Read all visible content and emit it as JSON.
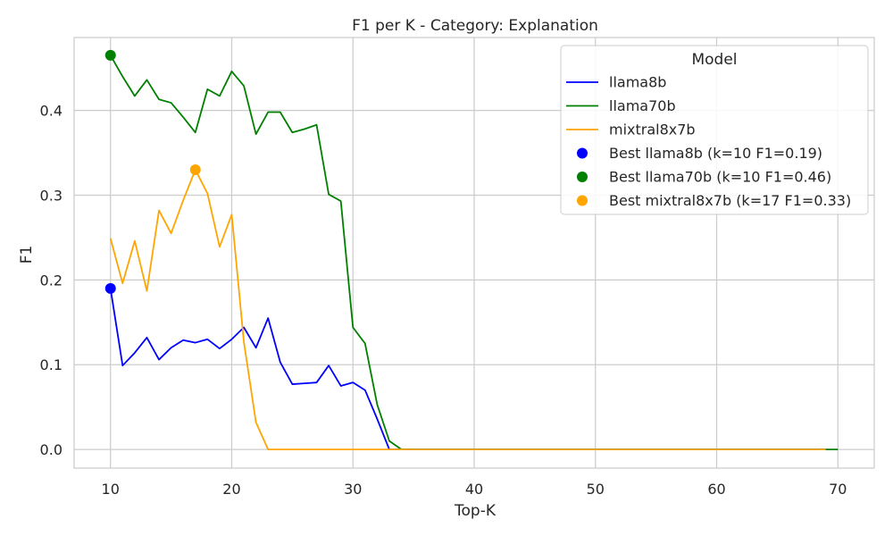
{
  "chart_data": {
    "type": "line",
    "title": "F1 per K - Category: Explanation",
    "xlabel": "Top-K",
    "ylabel": "F1",
    "xlim": [
      7,
      73
    ],
    "ylim": [
      -0.022,
      0.486
    ],
    "xticks": [
      10,
      20,
      30,
      40,
      50,
      60,
      70
    ],
    "xtick_labels": [
      "10",
      "20",
      "30",
      "40",
      "50",
      "60",
      "70"
    ],
    "yticks": [
      0.0,
      0.1,
      0.2,
      0.3,
      0.4
    ],
    "ytick_labels": [
      "0.0",
      "0.1",
      "0.2",
      "0.3",
      "0.4"
    ],
    "grid": true,
    "legend": {
      "title": "Model",
      "placement": "top-right"
    },
    "series": [
      {
        "name": "llama8b",
        "color": "#0000ff",
        "x": [
          10,
          11,
          12,
          13,
          14,
          15,
          16,
          17,
          18,
          19,
          20,
          21,
          22,
          23,
          24,
          25,
          26,
          27,
          28,
          29,
          30,
          31,
          32,
          33,
          34,
          35,
          36,
          37,
          38,
          39,
          40,
          41,
          42,
          43,
          44,
          45,
          46,
          47,
          48,
          49,
          50,
          51,
          52,
          53,
          54,
          55,
          56,
          57,
          58,
          59,
          60,
          61,
          62,
          63,
          64,
          65,
          66,
          67,
          68,
          69
        ],
        "y": [
          0.19,
          0.099,
          0.114,
          0.132,
          0.106,
          0.12,
          0.129,
          0.126,
          0.13,
          0.119,
          0.13,
          0.144,
          0.12,
          0.155,
          0.103,
          0.077,
          0.078,
          0.079,
          0.099,
          0.075,
          0.079,
          0.07,
          0.036,
          0.0,
          0,
          0,
          0,
          0,
          0,
          0,
          0,
          0,
          0,
          0,
          0,
          0,
          0,
          0,
          0,
          0,
          0,
          0,
          0,
          0,
          0,
          0,
          0,
          0,
          0,
          0,
          0,
          0,
          0,
          0,
          0,
          0,
          0,
          0,
          0,
          0
        ]
      },
      {
        "name": "llama70b",
        "color": "#008000",
        "x": [
          10,
          11,
          12,
          13,
          14,
          15,
          16,
          17,
          18,
          19,
          20,
          21,
          22,
          23,
          24,
          25,
          26,
          27,
          28,
          29,
          30,
          31,
          32,
          33,
          34,
          35,
          36,
          37,
          38,
          39,
          40,
          41,
          42,
          43,
          44,
          45,
          46,
          47,
          48,
          49,
          50,
          51,
          52,
          53,
          54,
          55,
          56,
          57,
          58,
          59,
          60,
          61,
          62,
          63,
          64,
          65,
          66,
          67,
          68,
          69,
          70
        ],
        "y": [
          0.465,
          0.44,
          0.417,
          0.436,
          0.413,
          0.409,
          0.392,
          0.374,
          0.425,
          0.417,
          0.446,
          0.429,
          0.372,
          0.398,
          0.398,
          0.374,
          0.378,
          0.383,
          0.301,
          0.293,
          0.144,
          0.125,
          0.053,
          0.01,
          0.0,
          0,
          0,
          0,
          0,
          0,
          0,
          0,
          0,
          0,
          0,
          0,
          0,
          0,
          0,
          0,
          0,
          0,
          0,
          0,
          0,
          0,
          0,
          0,
          0,
          0,
          0,
          0,
          0,
          0,
          0,
          0,
          0,
          0,
          0,
          0,
          0
        ]
      },
      {
        "name": "mixtral8x7b",
        "color": "#ffa500",
        "x": [
          10,
          11,
          12,
          13,
          14,
          15,
          16,
          17,
          18,
          19,
          20,
          21,
          22,
          23,
          24,
          25,
          26,
          27,
          28,
          29,
          30,
          31,
          32,
          33,
          34,
          35,
          36,
          37,
          38,
          39,
          40,
          41,
          42,
          43,
          44,
          45,
          46,
          47,
          48,
          49,
          50,
          51,
          52,
          53,
          54,
          55,
          56,
          57,
          58,
          59,
          60,
          61,
          62,
          63,
          64,
          65,
          66,
          67,
          68,
          69
        ],
        "y": [
          0.249,
          0.196,
          0.246,
          0.187,
          0.282,
          0.255,
          0.294,
          0.33,
          0.302,
          0.239,
          0.277,
          0.127,
          0.032,
          0.0,
          0,
          0,
          0,
          0,
          0,
          0,
          0,
          0,
          0,
          0,
          0,
          0,
          0,
          0,
          0,
          0,
          0,
          0,
          0,
          0,
          0,
          0,
          0,
          0,
          0,
          0,
          0,
          0,
          0,
          0,
          0,
          0,
          0,
          0,
          0,
          0,
          0,
          0,
          0,
          0,
          0,
          0,
          0,
          0,
          0,
          0
        ]
      }
    ],
    "best_points": [
      {
        "label": "Best llama8b (k=10 F1=0.19)",
        "x": 10,
        "y": 0.19,
        "color": "#0000ff"
      },
      {
        "label": "Best llama70b (k=10 F1=0.46)",
        "x": 10,
        "y": 0.465,
        "color": "#008000"
      },
      {
        "label": "Best mixtral8x7b (k=17 F1=0.33)",
        "x": 17,
        "y": 0.33,
        "color": "#ffa500"
      }
    ]
  }
}
